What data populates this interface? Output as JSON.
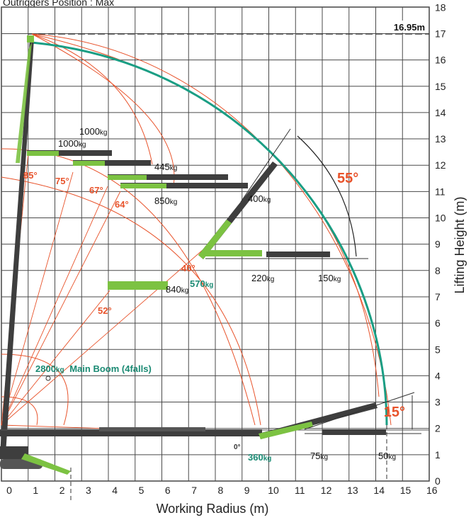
{
  "header": {
    "title": "Outriggers Position : Max"
  },
  "axes": {
    "x_label": "Working Radius (m)",
    "y_label": "Lifting Height (m)",
    "x_ticks": [
      "0",
      "1",
      "2",
      "3",
      "4",
      "5",
      "6",
      "7",
      "8",
      "9",
      "10",
      "11",
      "12",
      "13",
      "14",
      "15",
      "16"
    ],
    "y_ticks": [
      "0",
      "1",
      "2",
      "3",
      "4",
      "5",
      "6",
      "7",
      "8",
      "9",
      "10",
      "11",
      "12",
      "13",
      "14",
      "15",
      "16",
      "17",
      "18"
    ]
  },
  "max_height_label": "16.95m",
  "angle_labels": {
    "a85": "85°",
    "a75": "75°",
    "a67": "67°",
    "a64": "64°",
    "a52": "52°",
    "a40": "40°",
    "a0": "0°",
    "a55": "55°",
    "a15": "15°"
  },
  "load_labels": [
    {
      "value": "1000",
      "unit": "kg"
    },
    {
      "value": "1000",
      "unit": "kg"
    },
    {
      "value": "445",
      "unit": "kg"
    },
    {
      "value": "850",
      "unit": "kg"
    },
    {
      "value": "400",
      "unit": "kg"
    },
    {
      "value": "840",
      "unit": "kg"
    },
    {
      "value": "570",
      "unit": "kg"
    },
    {
      "value": "220",
      "unit": "kg"
    },
    {
      "value": "150",
      "unit": "kg"
    },
    {
      "value": "360",
      "unit": "kg"
    },
    {
      "value": "75",
      "unit": "kg"
    },
    {
      "value": "50",
      "unit": "kg"
    }
  ],
  "main_boom": {
    "value": "2800",
    "unit": "kg",
    "label": "Main Boom (4falls)"
  },
  "colors": {
    "grid": "#4a4a4a",
    "red": "#e8532b",
    "teal": "#1a9e84",
    "green": "#7cc242",
    "boom": "#3e3e3e",
    "teal_text": "#1a8a73",
    "orange_text": "#e8532b"
  }
}
